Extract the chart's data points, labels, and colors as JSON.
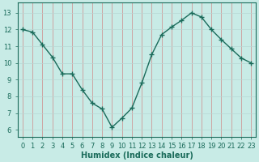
{
  "x": [
    0,
    1,
    2,
    3,
    4,
    5,
    6,
    7,
    8,
    9,
    10,
    11,
    12,
    13,
    14,
    15,
    16,
    17,
    18,
    19,
    20,
    21,
    22,
    23
  ],
  "y": [
    12.0,
    11.85,
    11.1,
    10.35,
    9.35,
    9.35,
    8.4,
    7.6,
    7.25,
    6.15,
    6.7,
    7.3,
    8.8,
    10.5,
    11.7,
    12.15,
    12.55,
    13.0,
    12.75,
    12.0,
    11.4,
    10.85,
    10.3,
    10.0
  ],
  "line_color": "#1a6b5a",
  "marker": "+",
  "marker_size": 4,
  "bg_color": "#c8ebe6",
  "grid_color_v": "#d08888",
  "grid_color_h": "#b8d8d4",
  "xlabel": "Humidex (Indice chaleur)",
  "xlabel_fontsize": 7,
  "ylabel_ticks": [
    6,
    7,
    8,
    9,
    10,
    11,
    12,
    13
  ],
  "ylim": [
    5.6,
    13.6
  ],
  "xlim": [
    -0.5,
    23.5
  ],
  "xtick_labels": [
    "0",
    "1",
    "2",
    "3",
    "4",
    "5",
    "6",
    "7",
    "8",
    "9",
    "10",
    "11",
    "12",
    "13",
    "14",
    "15",
    "16",
    "17",
    "18",
    "19",
    "20",
    "21",
    "22",
    "23"
  ],
  "tick_fontsize": 6,
  "line_width": 1.0
}
